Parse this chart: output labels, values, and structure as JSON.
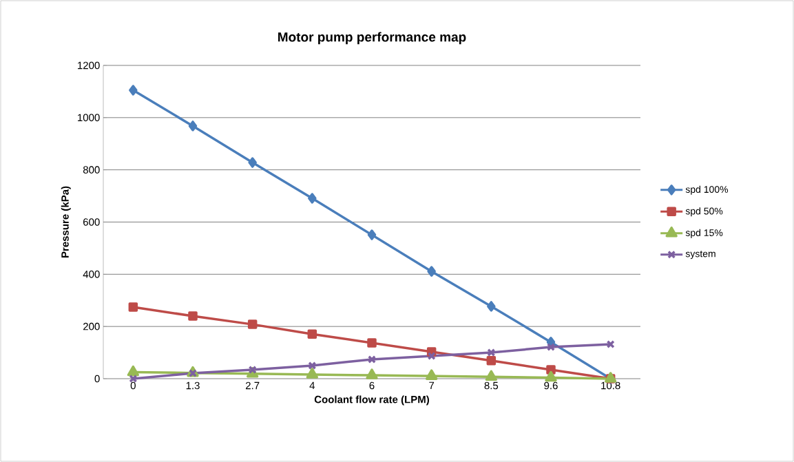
{
  "chart_data": {
    "type": "line",
    "title": "Motor pump performance map",
    "xlabel": "Coolant flow rate (LPM)",
    "ylabel": "Pressure (kPa)",
    "categories": [
      "0",
      "1.3",
      "2.7",
      "4",
      "6",
      "7",
      "8.5",
      "9.6",
      "10.8"
    ],
    "series": [
      {
        "name": "spd 100%",
        "color": "#4a7ebb",
        "marker": "diamond",
        "values": [
          1105,
          968,
          828,
          691,
          551,
          411,
          277,
          140,
          0
        ]
      },
      {
        "name": "spd 50%",
        "color": "#be4b48",
        "marker": "square",
        "values": [
          274,
          240,
          208,
          171,
          137,
          103,
          69,
          34,
          0
        ]
      },
      {
        "name": "spd 15%",
        "color": "#98b954",
        "marker": "triangle",
        "values": [
          25,
          22,
          19,
          16,
          13,
          10,
          7,
          4,
          0
        ]
      },
      {
        "name": "system",
        "color": "#7d60a0",
        "marker": "cross",
        "values": [
          0,
          21,
          34,
          50,
          74,
          87,
          100,
          121,
          132
        ]
      }
    ],
    "ylim": [
      0,
      1200
    ],
    "yticks": [
      0,
      200,
      400,
      600,
      800,
      1000,
      1200
    ],
    "grid": "y",
    "legend": "right",
    "line_style": "solid"
  }
}
